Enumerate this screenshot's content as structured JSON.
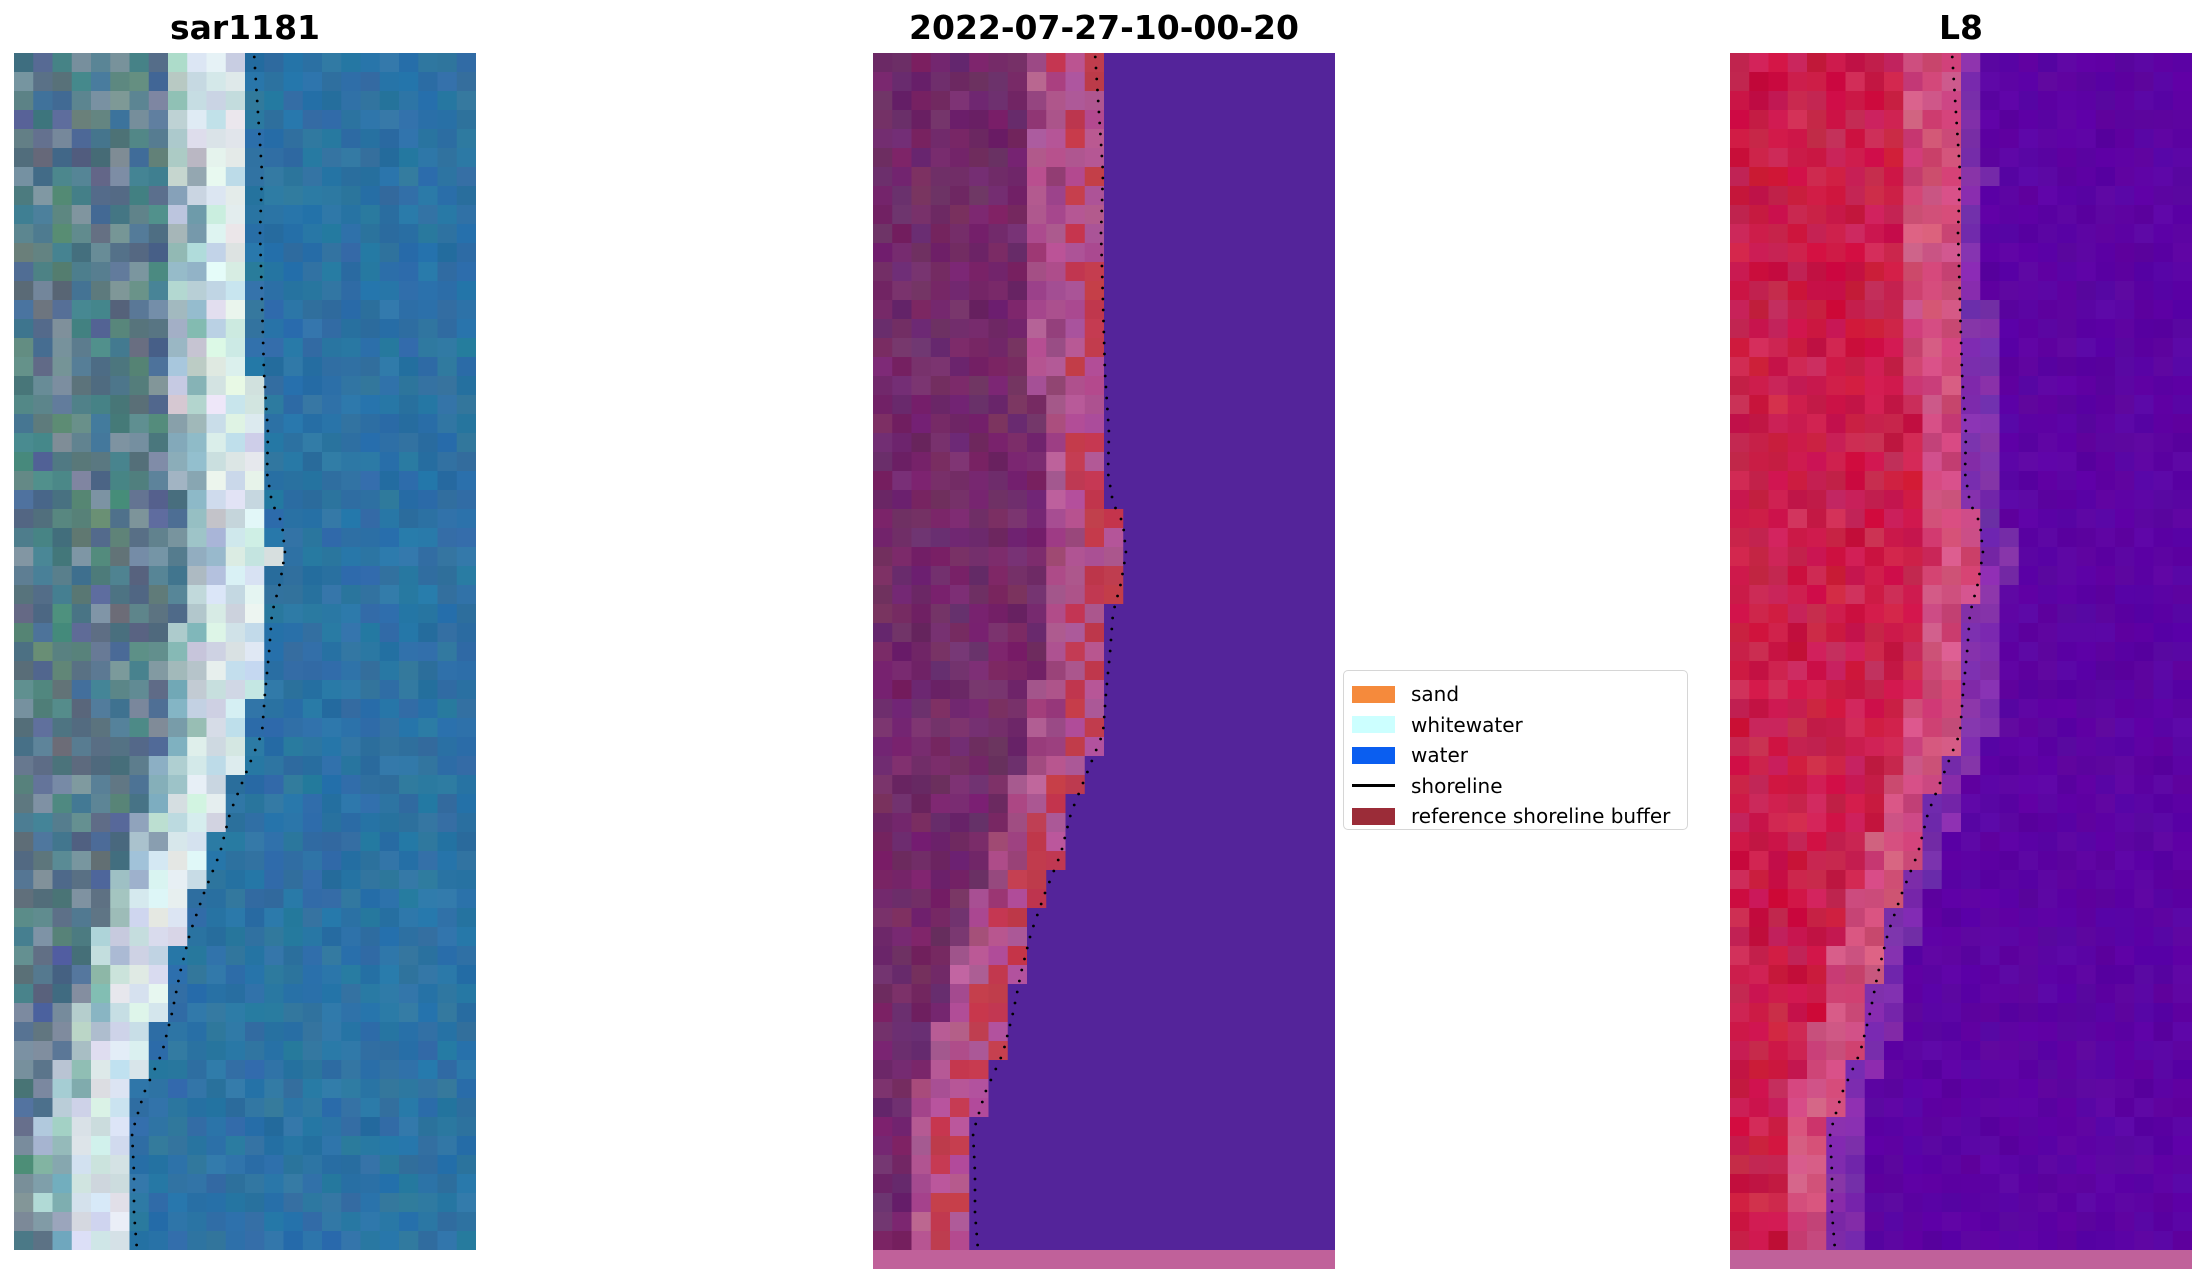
{
  "panels": [
    {
      "id": "rgb",
      "title": "sar1181"
    },
    {
      "id": "classified",
      "title": "2022-07-27-10-00-20"
    },
    {
      "id": "index",
      "title": "L8"
    }
  ],
  "legend": {
    "items": [
      {
        "label": "sand",
        "color": "#f58a3c",
        "kind": "patch"
      },
      {
        "label": "whitewater",
        "color": "#ccffff",
        "kind": "patch"
      },
      {
        "label": "water",
        "color": "#0a5ef0",
        "kind": "patch"
      },
      {
        "label": "shoreline",
        "color": "#000000",
        "kind": "line"
      },
      {
        "label": "reference shoreline buffer",
        "color": "#9b2c38",
        "kind": "patch"
      }
    ]
  },
  "colors": {
    "rgb_water": "#2e74a4",
    "rgb_land": "#4e6f8e",
    "rgb_whitewater": "#e6f2f0",
    "classified_water": "#54249a",
    "classified_land": "#6d2566",
    "classified_buffer": "#c23a4e",
    "index_water": "#5a00a0",
    "index_land": "#c8103e",
    "strip": "#c0619a"
  }
}
